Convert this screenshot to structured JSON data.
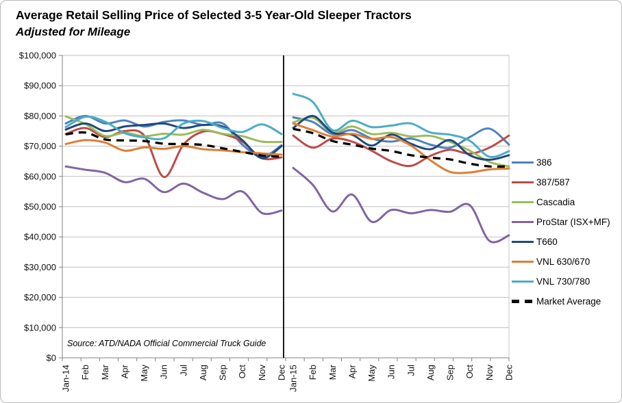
{
  "header": {
    "title": "Average Retail Selling Price of Selected 3-5 Year-Old Sleeper Tractors",
    "subtitle": "Adjusted for Mileage"
  },
  "source_note": "Source: ATD/NADA Official Commercial Truck Guide",
  "chart_data": {
    "type": "line",
    "smoothed": true,
    "legend_position": "right",
    "grid": true,
    "divider_between_years": true,
    "y_axis": {
      "min": 0,
      "max": 100000,
      "step": 10000,
      "tick_labels_top_to_bottom": [
        "$100,000",
        "$90,000",
        "$80,000",
        "$70,000",
        "$60,000",
        "$50,000",
        "$40,000",
        "$30,000",
        "$20,000",
        "$10,000",
        "$0"
      ]
    },
    "x_groups": [
      {
        "name": "2014",
        "categories": [
          "Jan-14",
          "Feb",
          "Mar",
          "Apr",
          "May",
          "Jun",
          "Jul",
          "Aug",
          "Sep",
          "Oct",
          "Nov",
          "Dec"
        ]
      },
      {
        "name": "2015",
        "categories": [
          "Jan-15",
          "Feb",
          "Mar",
          "Apr",
          "May",
          "Jun",
          "Jul",
          "Aug",
          "Sep",
          "Oct",
          "Nov",
          "Dec"
        ]
      }
    ],
    "series": [
      {
        "name": "386",
        "color": "#4F81BD",
        "style": "solid",
        "values": [
          [
            77500,
            80000,
            77500,
            78500,
            76500,
            78000,
            78500,
            77000,
            77500,
            70500,
            66500,
            70300
          ],
          [
            79500,
            78000,
            74000,
            75300,
            72500,
            71500,
            72500,
            70500,
            69500,
            73000,
            75800,
            70500
          ]
        ]
      },
      {
        "name": "387/587",
        "color": "#BE4B48",
        "style": "solid",
        "values": [
          [
            74000,
            76000,
            73000,
            75000,
            73500,
            59800,
            70500,
            74800,
            74000,
            71500,
            66000,
            66300
          ],
          [
            73500,
            69500,
            72500,
            71500,
            68500,
            65000,
            63500,
            66800,
            68800,
            67500,
            69500,
            73500
          ]
        ]
      },
      {
        "name": "Cascadia",
        "color": "#9BBB59",
        "style": "solid",
        "values": [
          [
            79800,
            77300,
            73400,
            74400,
            73300,
            74100,
            73800,
            75400,
            74100,
            73300,
            71500,
            71400
          ],
          [
            77800,
            79400,
            74500,
            76500,
            74000,
            74400,
            73200,
            73400,
            71400,
            68500,
            64800,
            63300
          ]
        ]
      },
      {
        "name": "ProStar (ISX+MF)",
        "color": "#8064A2",
        "style": "solid",
        "values": [
          [
            63300,
            62200,
            61200,
            58100,
            59200,
            54800,
            57600,
            54600,
            52500,
            55000,
            47900,
            48700
          ],
          [
            62800,
            57200,
            48400,
            54000,
            45000,
            48900,
            47800,
            48900,
            48300,
            50500,
            38700,
            40500
          ]
        ]
      },
      {
        "name": "T660",
        "color": "#1F497D",
        "style": "solid",
        "values": [
          [
            75500,
            77500,
            75000,
            76500,
            77000,
            77500,
            76000,
            77000,
            76500,
            72000,
            66000,
            70000
          ],
          [
            76000,
            80000,
            74500,
            73800,
            70200,
            73800,
            70800,
            69000,
            72000,
            67000,
            65500,
            67000
          ]
        ]
      },
      {
        "name": "VNL 630/670",
        "color": "#DD7E34",
        "style": "solid",
        "values": [
          [
            70700,
            72000,
            71200,
            68500,
            69600,
            69100,
            70000,
            69000,
            68600,
            68000,
            67600,
            67200
          ],
          [
            77500,
            75300,
            73200,
            74100,
            72400,
            73000,
            70200,
            65300,
            61500,
            61300,
            62300,
            62600
          ]
        ]
      },
      {
        "name": "VNL 730/780",
        "color": "#4BACC6",
        "style": "solid",
        "values": [
          [
            76300,
            79700,
            78100,
            74300,
            72900,
            72600,
            77500,
            78300,
            76000,
            74700,
            77200,
            74000
          ],
          [
            87300,
            84600,
            75300,
            78400,
            76300,
            76800,
            77500,
            74500,
            73800,
            71800,
            66500,
            68300
          ]
        ]
      },
      {
        "name": "Market Average",
        "color": "#000000",
        "style": "dashed",
        "values": [
          [
            73900,
            74500,
            72200,
            71900,
            71700,
            70800,
            70700,
            70400,
            69300,
            68100,
            66900,
            66500
          ],
          [
            75700,
            74300,
            71700,
            70500,
            69200,
            68400,
            67000,
            66200,
            65600,
            64200,
            63300,
            63300
          ]
        ]
      }
    ]
  }
}
